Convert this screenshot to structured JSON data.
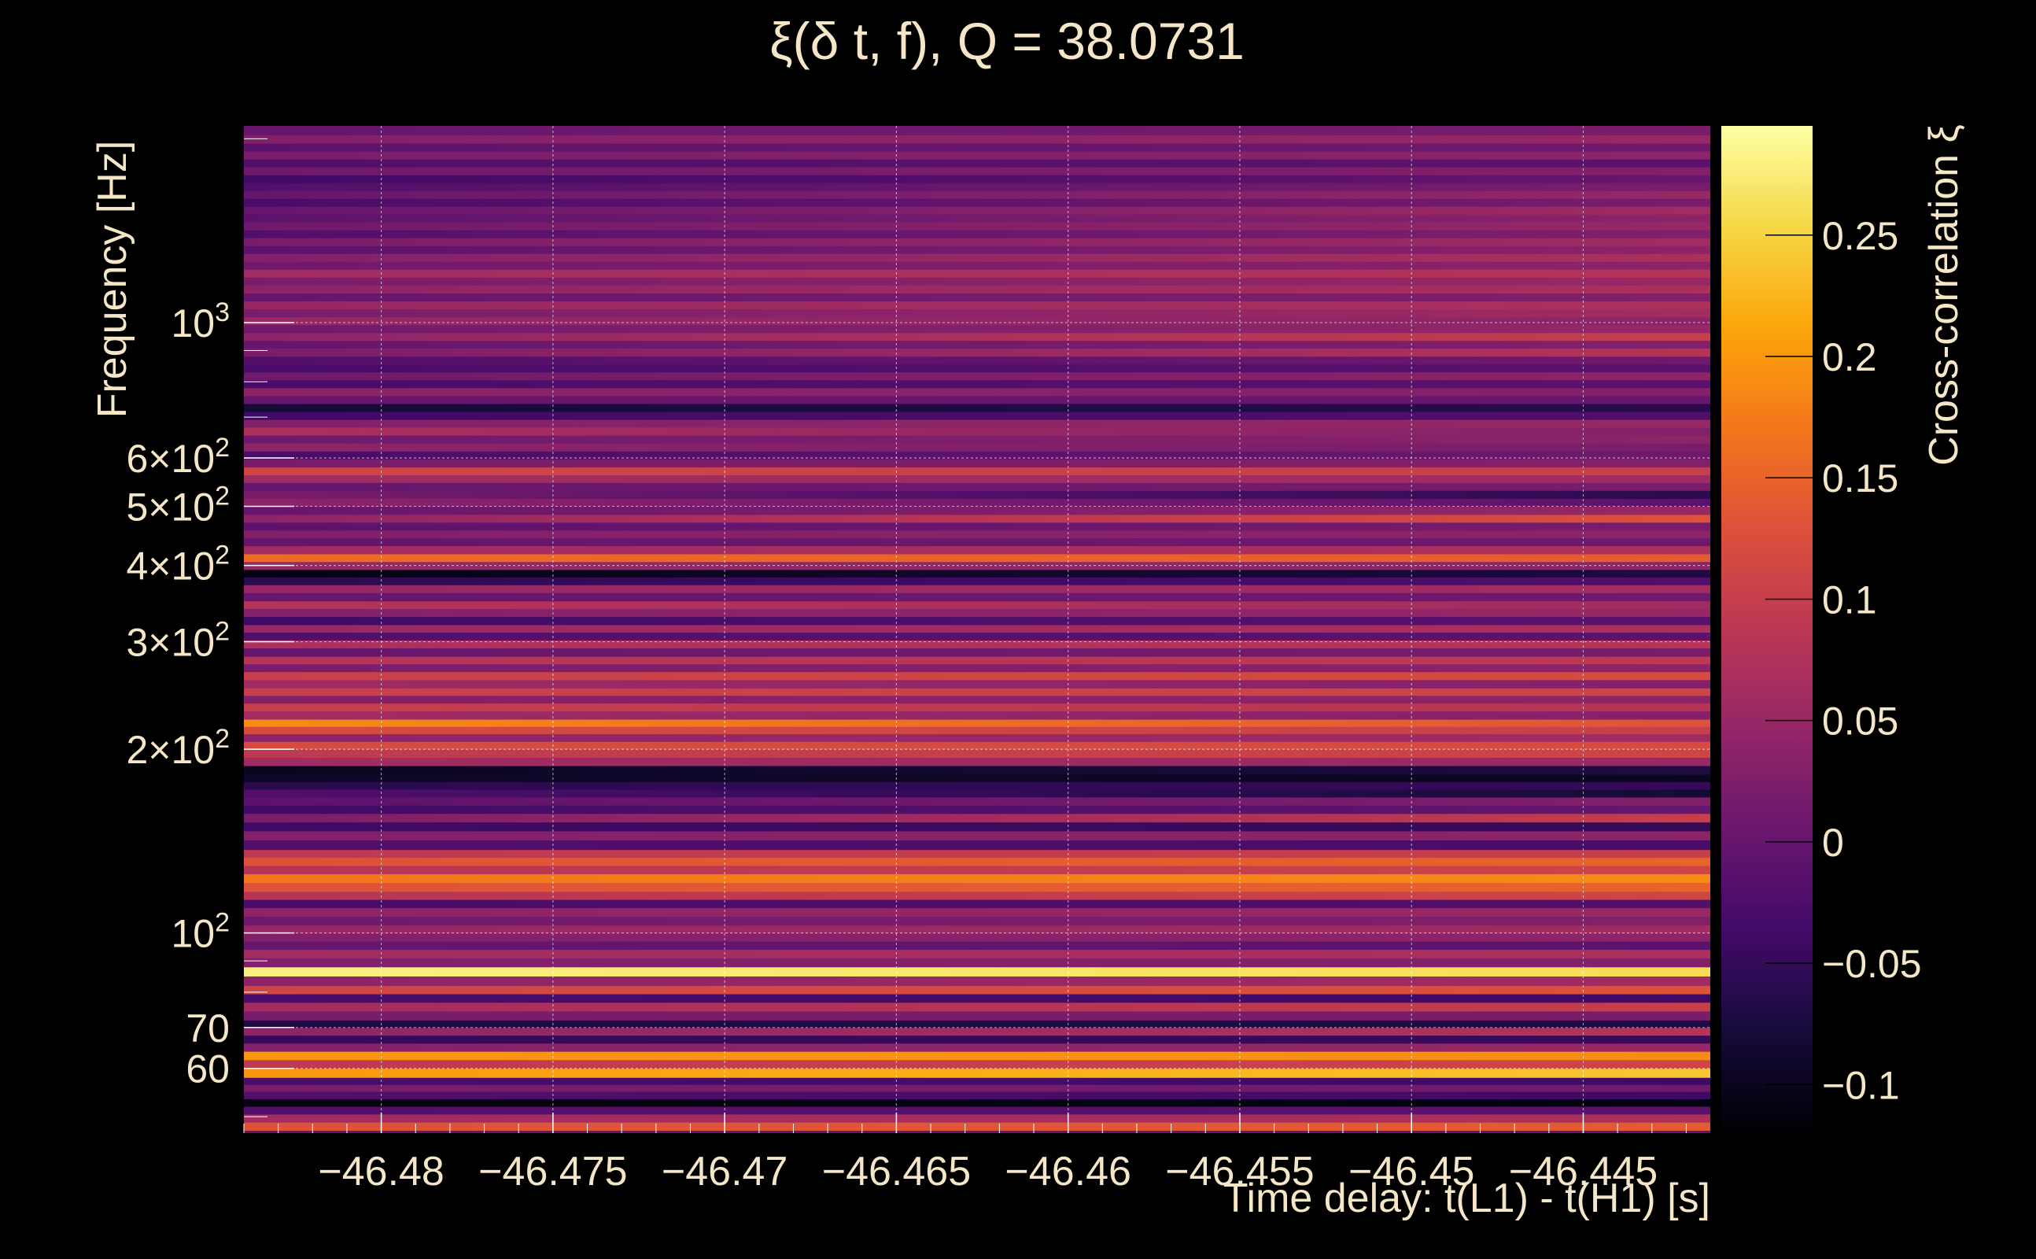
{
  "chart_data": {
    "type": "heatmap",
    "title": "ξ(δ t, f), Q = 38.0731",
    "xlabel": "Time delay: t(L1) - t(H1) [s]",
    "ylabel": "Frequency [Hz]",
    "colorbar_label": "Cross-correlation ξ",
    "xlim": [
      -46.484,
      -46.4413
    ],
    "ylim": [
      47,
      2100
    ],
    "yscale": "log",
    "clim": [
      -0.12,
      0.295
    ],
    "x_ticks": [
      {
        "value": -46.48,
        "label": "−46.48"
      },
      {
        "value": -46.475,
        "label": "−46.475"
      },
      {
        "value": -46.47,
        "label": "−46.47"
      },
      {
        "value": -46.465,
        "label": "−46.465"
      },
      {
        "value": -46.46,
        "label": "−46.46"
      },
      {
        "value": -46.455,
        "label": "−46.455"
      },
      {
        "value": -46.45,
        "label": "−46.45"
      },
      {
        "value": -46.445,
        "label": "−46.445"
      }
    ],
    "y_ticks": [
      {
        "value": 1000,
        "base": "10",
        "exp": "3"
      },
      {
        "value": 600,
        "base": "6×10",
        "exp": "2"
      },
      {
        "value": 500,
        "base": "5×10",
        "exp": "2"
      },
      {
        "value": 400,
        "base": "4×10",
        "exp": "2"
      },
      {
        "value": 300,
        "base": "3×10",
        "exp": "2"
      },
      {
        "value": 200,
        "base": "2×10",
        "exp": "2"
      },
      {
        "value": 100,
        "base": "10",
        "exp": "2"
      },
      {
        "value": 70,
        "base": "70",
        "exp": ""
      },
      {
        "value": 60,
        "base": "60",
        "exp": ""
      }
    ],
    "colorbar_ticks": [
      {
        "value": 0.25,
        "label": "0.25"
      },
      {
        "value": 0.2,
        "label": "0.2"
      },
      {
        "value": 0.15,
        "label": "0.15"
      },
      {
        "value": 0.1,
        "label": "0.1"
      },
      {
        "value": 0.05,
        "label": "0.05"
      },
      {
        "value": 0,
        "label": "0"
      },
      {
        "value": -0.05,
        "label": "−0.05"
      },
      {
        "value": -0.1,
        "label": "−0.1"
      }
    ],
    "bands": [
      {
        "f_lo": 47.5,
        "f_hi": 49.0,
        "xi_start": 0.13,
        "xi_end": 0.14
      },
      {
        "f_lo": 49.0,
        "f_hi": 50.5,
        "xi_start": 0.06,
        "xi_end": 0.07
      },
      {
        "f_lo": 50.5,
        "f_hi": 52.0,
        "xi_start": -0.02,
        "xi_end": -0.01
      },
      {
        "f_lo": 52.0,
        "f_hi": 53.5,
        "xi_start": -0.11,
        "xi_end": -0.11
      },
      {
        "f_lo": 53.5,
        "f_hi": 55.0,
        "xi_start": -0.02,
        "xi_end": -0.04
      },
      {
        "f_lo": 55.0,
        "f_hi": 56.5,
        "xi_start": 0.02,
        "xi_end": 0.01
      },
      {
        "f_lo": 56.5,
        "f_hi": 58.0,
        "xi_start": -0.03,
        "xi_end": -0.04
      },
      {
        "f_lo": 58.0,
        "f_hi": 60.0,
        "xi_start": 0.2,
        "xi_end": 0.24
      },
      {
        "f_lo": 60.0,
        "f_hi": 62.0,
        "xi_start": 0.09,
        "xi_end": 0.11
      },
      {
        "f_lo": 62.0,
        "f_hi": 64.0,
        "xi_start": 0.2,
        "xi_end": 0.19
      },
      {
        "f_lo": 64.0,
        "f_hi": 66.0,
        "xi_start": 0.03,
        "xi_end": 0.05
      },
      {
        "f_lo": 66.0,
        "f_hi": 68.0,
        "xi_start": -0.05,
        "xi_end": -0.05
      },
      {
        "f_lo": 68.0,
        "f_hi": 70.0,
        "xi_start": 0.04,
        "xi_end": 0.08
      },
      {
        "f_lo": 70.0,
        "f_hi": 72.0,
        "xi_start": -0.07,
        "xi_end": -0.07
      },
      {
        "f_lo": 72.0,
        "f_hi": 74.5,
        "xi_start": 0.02,
        "xi_end": 0.02
      },
      {
        "f_lo": 74.5,
        "f_hi": 77.0,
        "xi_start": 0.06,
        "xi_end": 0.1
      },
      {
        "f_lo": 77.0,
        "f_hi": 79.5,
        "xi_start": -0.03,
        "xi_end": -0.04
      },
      {
        "f_lo": 79.5,
        "f_hi": 82.0,
        "xi_start": 0.11,
        "xi_end": 0.13
      },
      {
        "f_lo": 82.0,
        "f_hi": 85.0,
        "xi_start": 0.04,
        "xi_end": 0.06
      },
      {
        "f_lo": 85.0,
        "f_hi": 88.0,
        "xi_start": 0.28,
        "xi_end": 0.26
      },
      {
        "f_lo": 88.0,
        "f_hi": 91.0,
        "xi_start": 0.03,
        "xi_end": 0.03
      },
      {
        "f_lo": 91.0,
        "f_hi": 94.0,
        "xi_start": 0.06,
        "xi_end": 0.07
      },
      {
        "f_lo": 94.0,
        "f_hi": 97.0,
        "xi_start": 0.0,
        "xi_end": -0.01
      },
      {
        "f_lo": 97.0,
        "f_hi": 100.0,
        "xi_start": 0.03,
        "xi_end": 0.04
      },
      {
        "f_lo": 100.0,
        "f_hi": 103.0,
        "xi_start": 0.05,
        "xi_end": 0.06
      },
      {
        "f_lo": 103.0,
        "f_hi": 106.5,
        "xi_start": 0.01,
        "xi_end": 0.03
      },
      {
        "f_lo": 106.5,
        "f_hi": 110.0,
        "xi_start": 0.04,
        "xi_end": 0.05
      },
      {
        "f_lo": 110.0,
        "f_hi": 113.5,
        "xi_start": -0.03,
        "xi_end": -0.02
      },
      {
        "f_lo": 113.5,
        "f_hi": 117.0,
        "xi_start": 0.08,
        "xi_end": 0.11
      },
      {
        "f_lo": 117.0,
        "f_hi": 121.0,
        "xi_start": 0.13,
        "xi_end": 0.15
      },
      {
        "f_lo": 121.0,
        "f_hi": 125.0,
        "xi_start": 0.17,
        "xi_end": 0.19
      },
      {
        "f_lo": 125.0,
        "f_hi": 129.0,
        "xi_start": 0.08,
        "xi_end": 0.11
      },
      {
        "f_lo": 129.0,
        "f_hi": 133.0,
        "xi_start": 0.13,
        "xi_end": 0.15
      },
      {
        "f_lo": 133.0,
        "f_hi": 137.0,
        "xi_start": 0.09,
        "xi_end": 0.1
      },
      {
        "f_lo": 137.0,
        "f_hi": 142.0,
        "xi_start": -0.02,
        "xi_end": -0.03
      },
      {
        "f_lo": 142.0,
        "f_hi": 147.0,
        "xi_start": 0.03,
        "xi_end": 0.04
      },
      {
        "f_lo": 147.0,
        "f_hi": 152.0,
        "xi_start": -0.04,
        "xi_end": -0.05
      },
      {
        "f_lo": 152.0,
        "f_hi": 157.0,
        "xi_start": 0.02,
        "xi_end": 0.1
      },
      {
        "f_lo": 157.0,
        "f_hi": 162.0,
        "xi_start": -0.04,
        "xi_end": 0.0
      },
      {
        "f_lo": 162.0,
        "f_hi": 167.0,
        "xi_start": -0.01,
        "xi_end": 0.03
      },
      {
        "f_lo": 167.0,
        "f_hi": 172.0,
        "xi_start": -0.02,
        "xi_end": -0.08
      },
      {
        "f_lo": 172.0,
        "f_hi": 177.0,
        "xi_start": -0.06,
        "xi_end": -0.05
      },
      {
        "f_lo": 177.0,
        "f_hi": 182.0,
        "xi_start": -0.09,
        "xi_end": -0.1
      },
      {
        "f_lo": 182.0,
        "f_hi": 188.0,
        "xi_start": -0.1,
        "xi_end": -0.07
      },
      {
        "f_lo": 188.0,
        "f_hi": 194.0,
        "xi_start": 0.06,
        "xi_end": 0.05
      },
      {
        "f_lo": 194.0,
        "f_hi": 200.0,
        "xi_start": 0.09,
        "xi_end": 0.11
      },
      {
        "f_lo": 200.0,
        "f_hi": 206.0,
        "xi_start": 0.12,
        "xi_end": 0.12
      },
      {
        "f_lo": 206.0,
        "f_hi": 212.0,
        "xi_start": 0.04,
        "xi_end": 0.06
      },
      {
        "f_lo": 212.0,
        "f_hi": 218.0,
        "xi_start": 0.12,
        "xi_end": 0.1
      },
      {
        "f_lo": 218.0,
        "f_hi": 224.0,
        "xi_start": 0.19,
        "xi_end": 0.13
      },
      {
        "f_lo": 224.0,
        "f_hi": 231.0,
        "xi_start": 0.06,
        "xi_end": 0.03
      },
      {
        "f_lo": 231.0,
        "f_hi": 238.0,
        "xi_start": 0.1,
        "xi_end": 0.08
      },
      {
        "f_lo": 238.0,
        "f_hi": 245.0,
        "xi_start": 0.03,
        "xi_end": 0.04
      },
      {
        "f_lo": 245.0,
        "f_hi": 252.0,
        "xi_start": 0.1,
        "xi_end": 0.11
      },
      {
        "f_lo": 252.0,
        "f_hi": 260.0,
        "xi_start": 0.06,
        "xi_end": 0.03
      },
      {
        "f_lo": 260.0,
        "f_hi": 268.0,
        "xi_start": 0.1,
        "xi_end": 0.12
      },
      {
        "f_lo": 268.0,
        "f_hi": 276.0,
        "xi_start": 0.02,
        "xi_end": 0.04
      },
      {
        "f_lo": 276.0,
        "f_hi": 284.0,
        "xi_start": 0.08,
        "xi_end": 0.09
      },
      {
        "f_lo": 284.0,
        "f_hi": 293.0,
        "xi_start": 0.0,
        "xi_end": 0.02
      },
      {
        "f_lo": 293.0,
        "f_hi": 302.0,
        "xi_start": 0.07,
        "xi_end": 0.08
      },
      {
        "f_lo": 302.0,
        "f_hi": 311.0,
        "xi_start": -0.02,
        "xi_end": -0.01
      },
      {
        "f_lo": 311.0,
        "f_hi": 320.0,
        "xi_start": 0.05,
        "xi_end": 0.07
      },
      {
        "f_lo": 320.0,
        "f_hi": 330.0,
        "xi_start": -0.04,
        "xi_end": -0.01
      },
      {
        "f_lo": 330.0,
        "f_hi": 340.0,
        "xi_start": 0.03,
        "xi_end": 0.05
      },
      {
        "f_lo": 340.0,
        "f_hi": 350.0,
        "xi_start": 0.08,
        "xi_end": 0.06
      },
      {
        "f_lo": 350.0,
        "f_hi": 361.0,
        "xi_start": 0.0,
        "xi_end": 0.01
      },
      {
        "f_lo": 361.0,
        "f_hi": 372.0,
        "xi_start": 0.05,
        "xi_end": 0.06
      },
      {
        "f_lo": 372.0,
        "f_hi": 383.0,
        "xi_start": -0.06,
        "xi_end": -0.02
      },
      {
        "f_lo": 383.0,
        "f_hi": 394.0,
        "xi_start": -0.11,
        "xi_end": -0.07
      },
      {
        "f_lo": 394.0,
        "f_hi": 406.0,
        "xi_start": 0.05,
        "xi_end": 0.04
      },
      {
        "f_lo": 406.0,
        "f_hi": 418.0,
        "xi_start": 0.16,
        "xi_end": 0.14
      },
      {
        "f_lo": 418.0,
        "f_hi": 431.0,
        "xi_start": 0.06,
        "xi_end": 0.07
      },
      {
        "f_lo": 431.0,
        "f_hi": 444.0,
        "xi_start": 0.0,
        "xi_end": 0.01
      },
      {
        "f_lo": 444.0,
        "f_hi": 457.0,
        "xi_start": 0.03,
        "xi_end": 0.04
      },
      {
        "f_lo": 457.0,
        "f_hi": 471.0,
        "xi_start": -0.01,
        "xi_end": 0.02
      },
      {
        "f_lo": 471.0,
        "f_hi": 485.0,
        "xi_start": 0.04,
        "xi_end": 0.13
      },
      {
        "f_lo": 485.0,
        "f_hi": 500.0,
        "xi_start": 0.0,
        "xi_end": 0.05
      },
      {
        "f_lo": 500.0,
        "f_hi": 515.0,
        "xi_start": 0.04,
        "xi_end": -0.01
      },
      {
        "f_lo": 515.0,
        "f_hi": 531.0,
        "xi_start": 0.02,
        "xi_end": -0.06
      },
      {
        "f_lo": 531.0,
        "f_hi": 547.0,
        "xi_start": 0.0,
        "xi_end": 0.02
      },
      {
        "f_lo": 547.0,
        "f_hi": 563.0,
        "xi_start": 0.06,
        "xi_end": 0.06
      },
      {
        "f_lo": 563.0,
        "f_hi": 580.0,
        "xi_start": 0.11,
        "xi_end": 0.1
      },
      {
        "f_lo": 580.0,
        "f_hi": 598.0,
        "xi_start": 0.02,
        "xi_end": 0.03
      },
      {
        "f_lo": 598.0,
        "f_hi": 616.0,
        "xi_start": -0.03,
        "xi_end": 0.01
      },
      {
        "f_lo": 616.0,
        "f_hi": 635.0,
        "xi_start": 0.04,
        "xi_end": 0.02
      },
      {
        "f_lo": 635.0,
        "f_hi": 654.0,
        "xi_start": 0.01,
        "xi_end": 0.04
      },
      {
        "f_lo": 654.0,
        "f_hi": 674.0,
        "xi_start": 0.07,
        "xi_end": 0.03
      },
      {
        "f_lo": 674.0,
        "f_hi": 694.0,
        "xi_start": 0.03,
        "xi_end": 0.05
      },
      {
        "f_lo": 694.0,
        "f_hi": 715.0,
        "xi_start": -0.04,
        "xi_end": -0.02
      },
      {
        "f_lo": 715.0,
        "f_hi": 737.0,
        "xi_start": -0.08,
        "xi_end": -0.06
      },
      {
        "f_lo": 737.0,
        "f_hi": 759.0,
        "xi_start": 0.0,
        "xi_end": 0.0
      },
      {
        "f_lo": 759.0,
        "f_hi": 782.0,
        "xi_start": 0.04,
        "xi_end": 0.03
      },
      {
        "f_lo": 782.0,
        "f_hi": 806.0,
        "xi_start": -0.03,
        "xi_end": -0.01
      },
      {
        "f_lo": 806.0,
        "f_hi": 830.0,
        "xi_start": 0.01,
        "xi_end": 0.04
      },
      {
        "f_lo": 830.0,
        "f_hi": 855.0,
        "xi_start": -0.03,
        "xi_end": -0.01
      },
      {
        "f_lo": 855.0,
        "f_hi": 881.0,
        "xi_start": -0.02,
        "xi_end": 0.01
      },
      {
        "f_lo": 881.0,
        "f_hi": 908.0,
        "xi_start": 0.02,
        "xi_end": 0.08
      },
      {
        "f_lo": 908.0,
        "f_hi": 935.0,
        "xi_start": 0.0,
        "xi_end": 0.03
      },
      {
        "f_lo": 935.0,
        "f_hi": 963.0,
        "xi_start": 0.04,
        "xi_end": 0.1
      },
      {
        "f_lo": 963.0,
        "f_hi": 992.0,
        "xi_start": 0.01,
        "xi_end": 0.05
      },
      {
        "f_lo": 992.0,
        "f_hi": 1022.0,
        "xi_start": 0.05,
        "xi_end": 0.04
      },
      {
        "f_lo": 1022.0,
        "f_hi": 1053.0,
        "xi_start": 0.02,
        "xi_end": 0.06
      },
      {
        "f_lo": 1053.0,
        "f_hi": 1085.0,
        "xi_start": 0.05,
        "xi_end": 0.07
      },
      {
        "f_lo": 1085.0,
        "f_hi": 1118.0,
        "xi_start": 0.0,
        "xi_end": 0.03
      },
      {
        "f_lo": 1118.0,
        "f_hi": 1152.0,
        "xi_start": 0.04,
        "xi_end": 0.07
      },
      {
        "f_lo": 1152.0,
        "f_hi": 1187.0,
        "xi_start": 0.02,
        "xi_end": 0.05
      },
      {
        "f_lo": 1187.0,
        "f_hi": 1223.0,
        "xi_start": 0.06,
        "xi_end": 0.08
      },
      {
        "f_lo": 1223.0,
        "f_hi": 1260.0,
        "xi_start": 0.01,
        "xi_end": 0.04
      },
      {
        "f_lo": 1260.0,
        "f_hi": 1298.0,
        "xi_start": 0.03,
        "xi_end": 0.07
      },
      {
        "f_lo": 1298.0,
        "f_hi": 1337.0,
        "xi_start": -0.01,
        "xi_end": 0.04
      },
      {
        "f_lo": 1337.0,
        "f_hi": 1377.0,
        "xi_start": 0.02,
        "xi_end": 0.06
      },
      {
        "f_lo": 1377.0,
        "f_hi": 1419.0,
        "xi_start": -0.02,
        "xi_end": 0.03
      },
      {
        "f_lo": 1419.0,
        "f_hi": 1462.0,
        "xi_start": 0.01,
        "xi_end": 0.05
      },
      {
        "f_lo": 1462.0,
        "f_hi": 1506.0,
        "xi_start": -0.01,
        "xi_end": 0.04
      },
      {
        "f_lo": 1506.0,
        "f_hi": 1551.0,
        "xi_start": 0.0,
        "xi_end": 0.06
      },
      {
        "f_lo": 1551.0,
        "f_hi": 1598.0,
        "xi_start": -0.03,
        "xi_end": 0.02
      },
      {
        "f_lo": 1598.0,
        "f_hi": 1646.0,
        "xi_start": 0.0,
        "xi_end": 0.05
      },
      {
        "f_lo": 1646.0,
        "f_hi": 1696.0,
        "xi_start": -0.02,
        "xi_end": 0.02
      },
      {
        "f_lo": 1696.0,
        "f_hi": 1747.0,
        "xi_start": -0.04,
        "xi_end": 0.0
      },
      {
        "f_lo": 1747.0,
        "f_hi": 1800.0,
        "xi_start": 0.01,
        "xi_end": 0.03
      },
      {
        "f_lo": 1800.0,
        "f_hi": 1854.0,
        "xi_start": -0.02,
        "xi_end": -0.01
      },
      {
        "f_lo": 1854.0,
        "f_hi": 1910.0,
        "xi_start": 0.02,
        "xi_end": 0.04
      },
      {
        "f_lo": 1910.0,
        "f_hi": 1968.0,
        "xi_start": -0.01,
        "xi_end": 0.01
      },
      {
        "f_lo": 1968.0,
        "f_hi": 2030.0,
        "xi_start": 0.03,
        "xi_end": 0.05
      },
      {
        "f_lo": 2030.0,
        "f_hi": 2100.0,
        "xi_start": 0.0,
        "xi_end": 0.02
      }
    ]
  }
}
